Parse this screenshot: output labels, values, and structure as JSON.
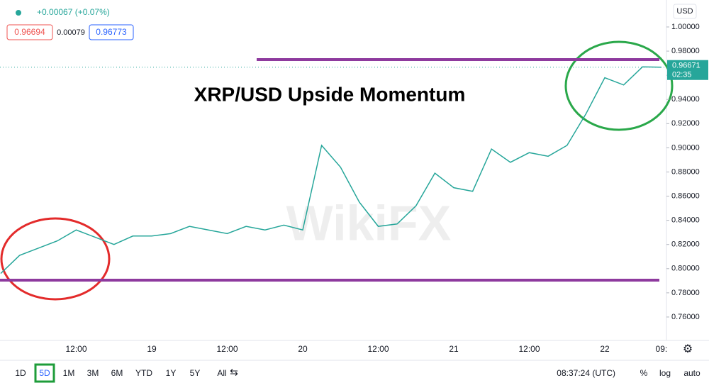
{
  "header": {
    "change": "+0.00067 (+0.07%)",
    "bid": 0.96694,
    "spread": 0.00079,
    "ask": 0.96773
  },
  "chart_data": {
    "type": "line",
    "title": "XRP/USD Upside Momentum",
    "watermark": "WikiFX",
    "currency": "USD",
    "categories": [
      null,
      null,
      null,
      null,
      "12:00",
      null,
      null,
      null,
      "19",
      null,
      null,
      null,
      "12:00",
      null,
      null,
      null,
      "20",
      null,
      null,
      null,
      "12:00",
      null,
      null,
      null,
      "21",
      null,
      null,
      null,
      "12:00",
      null,
      null,
      null,
      "22",
      null,
      null,
      "09:"
    ],
    "values": [
      0.796,
      0.811,
      0.817,
      0.823,
      0.832,
      0.826,
      0.82,
      0.827,
      0.827,
      0.829,
      0.835,
      0.832,
      0.829,
      0.835,
      0.832,
      0.836,
      0.832,
      0.902,
      0.884,
      0.855,
      0.835,
      0.837,
      0.852,
      0.879,
      0.867,
      0.864,
      0.899,
      0.888,
      0.896,
      0.893,
      0.902,
      0.928,
      0.958,
      0.952,
      0.967,
      0.96671
    ],
    "color": "#26a69a",
    "ylim": [
      0.7406,
      1.0223
    ],
    "yticks": [
      {
        "value": 0.76,
        "label": "0.76000"
      },
      {
        "value": 0.78,
        "label": "0.78000"
      },
      {
        "value": 0.8,
        "label": "0.80000"
      },
      {
        "value": 0.82,
        "label": "0.82000"
      },
      {
        "value": 0.84,
        "label": "0.84000"
      },
      {
        "value": 0.86,
        "label": "0.86000"
      },
      {
        "value": 0.88,
        "label": "0.88000"
      },
      {
        "value": 0.9,
        "label": "0.90000"
      },
      {
        "value": 0.92,
        "label": "0.92000"
      },
      {
        "value": 0.94,
        "label": "0.94000"
      },
      {
        "value": 0.96,
        "label": "0.96000"
      },
      {
        "value": 0.98,
        "label": "0.98000"
      },
      {
        "value": 1.0,
        "label": "1.00000"
      }
    ],
    "levels": [
      0.973,
      0.7905
    ],
    "level_color": "#8e3a9e",
    "last_price": 0.96671,
    "countdown": "02:35"
  },
  "toolbar": {
    "ranges": [
      "1D",
      "5D",
      "1M",
      "3M",
      "6M",
      "YTD",
      "1Y",
      "5Y",
      "All"
    ],
    "active_range": 1,
    "time": "08:37:24 (UTC)",
    "options": [
      "%",
      "log",
      "auto"
    ]
  }
}
